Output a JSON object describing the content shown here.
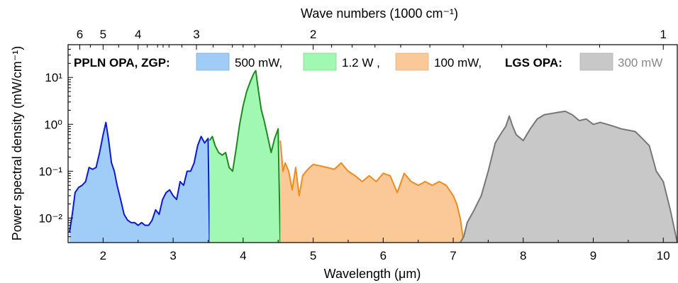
{
  "chart_data": {
    "type": "area",
    "xlabel": "Wavelength (μm)",
    "ylabel": "Power spectral density (mW/cm⁻¹)",
    "top_xlabel": "Wave numbers (1000 cm⁻¹)",
    "xlim": [
      1.5,
      10.2
    ],
    "ylim": [
      0.003,
      50
    ],
    "yscale": "log",
    "x_ticks": [
      2,
      3,
      4,
      5,
      6,
      7,
      8,
      9,
      10
    ],
    "x_tick_labels": [
      "2",
      "3",
      "4",
      "5",
      "6",
      "7",
      "8",
      "9",
      "10"
    ],
    "y_ticks": [
      0.01,
      0.1,
      1,
      10
    ],
    "y_tick_labels": [
      "10⁻²",
      "10⁻¹",
      "10⁰",
      "10¹"
    ],
    "top_ticks": [
      6,
      5,
      4,
      3,
      2,
      1
    ],
    "top_tick_labels": [
      "6",
      "5",
      "4",
      "3",
      "2",
      "1"
    ],
    "legend": {
      "group1_label": "PPLN OPA, ZGP:",
      "group2_label": "LGS OPA:",
      "entries": [
        {
          "label": "500 mW,",
          "color": "#a0ccf8"
        },
        {
          "label": "1.2 W ,",
          "color": "#a0f8b2"
        },
        {
          "label": "100 mW,",
          "color": "#fbc898"
        },
        {
          "label": "300 mW",
          "color": "#c8c8c8"
        }
      ]
    },
    "series": [
      {
        "label": "500 mW",
        "fill": "#a0ccf8",
        "line": "#0a18d8",
        "x": [
          1.52,
          1.56,
          1.6,
          1.65,
          1.7,
          1.75,
          1.8,
          1.85,
          1.9,
          1.95,
          2.0,
          2.04,
          2.08,
          2.12,
          2.16,
          2.2,
          2.25,
          2.3,
          2.35,
          2.4,
          2.45,
          2.5,
          2.55,
          2.6,
          2.65,
          2.7,
          2.75,
          2.8,
          2.85,
          2.9,
          2.95,
          3.0,
          3.05,
          3.1,
          3.15,
          3.2,
          3.25,
          3.3,
          3.35,
          3.4,
          3.45,
          3.5,
          3.52
        ],
        "y": [
          0.005,
          0.012,
          0.035,
          0.045,
          0.05,
          0.06,
          0.12,
          0.11,
          0.12,
          0.25,
          0.6,
          1.1,
          0.45,
          0.15,
          0.1,
          0.05,
          0.025,
          0.012,
          0.009,
          0.008,
          0.008,
          0.007,
          0.008,
          0.007,
          0.007,
          0.009,
          0.015,
          0.012,
          0.025,
          0.035,
          0.04,
          0.03,
          0.025,
          0.06,
          0.05,
          0.1,
          0.1,
          0.15,
          0.35,
          0.55,
          0.4,
          0.5,
          0.003
        ]
      },
      {
        "label": "1.2 W",
        "fill": "#a0f8b2",
        "line": "#1e8a1e",
        "x": [
          3.52,
          3.56,
          3.6,
          3.65,
          3.7,
          3.75,
          3.8,
          3.85,
          3.9,
          3.95,
          4.0,
          4.05,
          4.1,
          4.15,
          4.18,
          4.22,
          4.26,
          4.3,
          4.35,
          4.4,
          4.45,
          4.5,
          4.53
        ],
        "y": [
          0.45,
          0.55,
          0.35,
          0.25,
          0.22,
          0.25,
          0.12,
          0.1,
          0.3,
          1.0,
          2.5,
          5.0,
          8.0,
          12.0,
          14.0,
          5.0,
          2.0,
          1.2,
          0.55,
          0.25,
          0.5,
          0.8,
          0.003
        ]
      },
      {
        "label": "100 mW",
        "fill": "#fbc898",
        "line": "#f08b1e",
        "x": [
          4.53,
          4.57,
          4.6,
          4.65,
          4.7,
          4.75,
          4.8,
          4.85,
          4.9,
          4.95,
          5.0,
          5.1,
          5.2,
          5.3,
          5.4,
          5.5,
          5.6,
          5.7,
          5.8,
          5.9,
          6.0,
          6.1,
          6.2,
          6.3,
          6.4,
          6.5,
          6.6,
          6.7,
          6.8,
          6.9,
          7.0,
          7.05,
          7.1,
          7.15
        ],
        "y": [
          0.45,
          0.1,
          0.15,
          0.1,
          0.04,
          0.12,
          0.03,
          0.08,
          0.1,
          0.12,
          0.14,
          0.13,
          0.12,
          0.11,
          0.15,
          0.1,
          0.08,
          0.06,
          0.08,
          0.06,
          0.09,
          0.08,
          0.035,
          0.09,
          0.06,
          0.05,
          0.06,
          0.05,
          0.06,
          0.05,
          0.03,
          0.02,
          0.01,
          0.003
        ]
      },
      {
        "label": "300 mW",
        "fill": "#c8c8c8",
        "line": "#777777",
        "x": [
          7.1,
          7.15,
          7.2,
          7.3,
          7.4,
          7.5,
          7.6,
          7.7,
          7.75,
          7.8,
          7.85,
          7.9,
          8.0,
          8.1,
          8.2,
          8.3,
          8.4,
          8.5,
          8.6,
          8.7,
          8.8,
          8.9,
          9.0,
          9.1,
          9.2,
          9.3,
          9.4,
          9.5,
          9.6,
          9.7,
          9.8,
          9.9,
          10.0,
          10.1,
          10.2
        ],
        "y": [
          0.003,
          0.004,
          0.008,
          0.015,
          0.03,
          0.1,
          0.4,
          0.7,
          0.9,
          1.5,
          0.9,
          0.6,
          0.45,
          0.8,
          1.3,
          1.6,
          1.7,
          1.8,
          1.9,
          1.6,
          1.2,
          1.3,
          1.0,
          1.1,
          1.0,
          0.9,
          0.8,
          0.75,
          0.7,
          0.5,
          0.35,
          0.1,
          0.06,
          0.015,
          0.003
        ]
      }
    ]
  }
}
